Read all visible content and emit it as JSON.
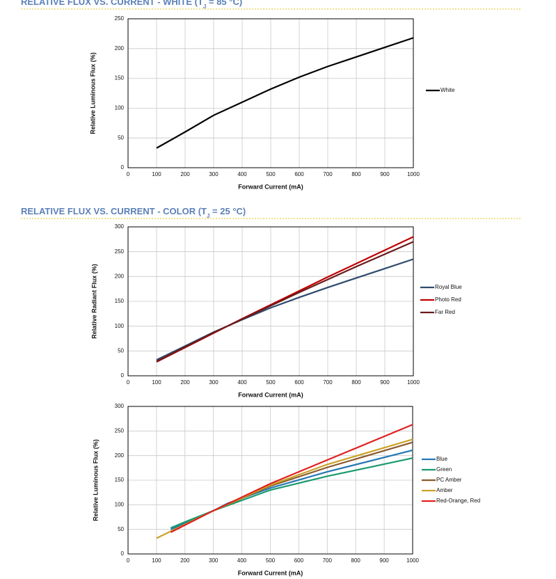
{
  "headings": [
    {
      "parts": [
        "RELATIVE FLUX VS. CURRENT - WHITE (T",
        "J",
        " = 85 °C)"
      ]
    },
    {
      "parts": [
        "RELATIVE FLUX VS. CURRENT - COLOR (T",
        "J",
        " = 25 °C)"
      ]
    }
  ],
  "chart_data": [
    {
      "type": "line",
      "xlabel": "Forward Current (mA)",
      "ylabel": "Relative Luminous Flux (%)",
      "xlim": [
        0,
        1000
      ],
      "xticks": [
        0,
        100,
        200,
        300,
        400,
        500,
        600,
        700,
        800,
        900,
        1000
      ],
      "ylim": [
        0,
        250
      ],
      "yticks": [
        0,
        50,
        100,
        150,
        200,
        250
      ],
      "grid": true,
      "legend": "right",
      "series": [
        {
          "name": "White",
          "color": "#000000",
          "x": [
            100,
            200,
            300,
            400,
            500,
            600,
            700,
            800,
            900,
            1000
          ],
          "values": [
            33,
            60,
            88,
            110,
            132,
            152,
            170,
            186,
            202,
            218
          ]
        }
      ]
    },
    {
      "type": "line",
      "xlabel": "Forward Current (mA)",
      "ylabel": "Relative Radiant Flux (%)",
      "xlim": [
        0,
        1000
      ],
      "xticks": [
        0,
        100,
        200,
        300,
        400,
        500,
        600,
        700,
        800,
        900,
        1000
      ],
      "ylim": [
        0,
        300
      ],
      "yticks": [
        0,
        50,
        100,
        150,
        200,
        250,
        300
      ],
      "grid": true,
      "legend": "right",
      "series": [
        {
          "name": "Royal Blue",
          "color": "#2e4a6e",
          "x": [
            100,
            200,
            300,
            400,
            500,
            600,
            700,
            800,
            900,
            1000
          ],
          "values": [
            32,
            60,
            88,
            113,
            137,
            158,
            178,
            197,
            216,
            235
          ]
        },
        {
          "name": "Photo Red",
          "color": "#c00000",
          "x": [
            100,
            200,
            300,
            400,
            500,
            600,
            700,
            800,
            900,
            1000
          ],
          "values": [
            28,
            57,
            86,
            115,
            143,
            171,
            199,
            226,
            253,
            280
          ]
        },
        {
          "name": "Far Red",
          "color": "#6b1a1a",
          "x": [
            100,
            200,
            300,
            400,
            500,
            600,
            700,
            800,
            900,
            1000
          ],
          "values": [
            29,
            58,
            87,
            114,
            141,
            168,
            194,
            220,
            245,
            270
          ]
        }
      ]
    },
    {
      "type": "line",
      "xlabel": "Forward Current (mA)",
      "ylabel": "Relative Luminous Flux (%)",
      "xlim": [
        0,
        1000
      ],
      "xticks": [
        0,
        100,
        200,
        300,
        400,
        500,
        600,
        700,
        800,
        900,
        1000
      ],
      "ylim": [
        0,
        300
      ],
      "yticks": [
        0,
        50,
        100,
        150,
        200,
        250,
        300
      ],
      "grid": true,
      "legend": "right",
      "series": [
        {
          "name": "Blue",
          "color": "#2478b4",
          "x": [
            150,
            200,
            300,
            350,
            500,
            700,
            1000
          ],
          "values": [
            50,
            62,
            88,
            103,
            134,
            167,
            211
          ]
        },
        {
          "name": "Green",
          "color": "#1a9a6e",
          "x": [
            150,
            200,
            300,
            500,
            700,
            1000
          ],
          "values": [
            53,
            65,
            88,
            130,
            158,
            195
          ]
        },
        {
          "name": "PC Amber",
          "color": "#8b5a2b",
          "x": [
            150,
            300,
            500,
            700,
            1000
          ],
          "values": [
            46,
            88,
            138,
            176,
            227
          ]
        },
        {
          "name": "Amber",
          "color": "#c9a227",
          "x": [
            100,
            300,
            500,
            700,
            1000
          ],
          "values": [
            32,
            88,
            140,
            182,
            233
          ]
        },
        {
          "name": "Red-Orange, Red",
          "color": "#e02020",
          "x": [
            150,
            300,
            500,
            700,
            1000
          ],
          "values": [
            44,
            88,
            143,
            191,
            263
          ]
        }
      ]
    }
  ]
}
